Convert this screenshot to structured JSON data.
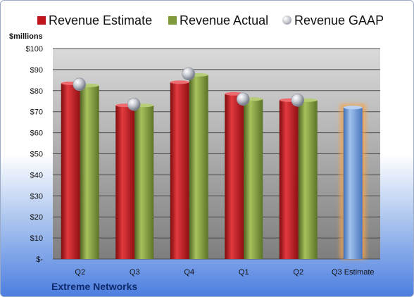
{
  "chart_data": {
    "type": "bar",
    "categories": [
      "Q2",
      "Q3",
      "Q4",
      "Q1",
      "Q2",
      "Q3 Estimate"
    ],
    "series": [
      {
        "name": "Revenue Estimate",
        "values": [
          83.5,
          73,
          84,
          78.5,
          75.5,
          72
        ]
      },
      {
        "name": "Revenue Actual",
        "values": [
          82.5,
          73,
          87.5,
          76,
          75.5,
          null
        ]
      },
      {
        "name": "Revenue GAAP",
        "values": [
          83,
          73.5,
          88,
          76,
          75.5,
          null
        ]
      }
    ],
    "ylabel": "$millions",
    "yticks": [
      "$-",
      "$10",
      "$20",
      "$30",
      "$40",
      "$50",
      "$60",
      "$70",
      "$80",
      "$90",
      "$100"
    ],
    "ylim": [
      0,
      100
    ],
    "legend_position": "top",
    "grid": true,
    "company": "Extreme Networks",
    "colors": {
      "estimate": "#c0161b",
      "actual": "#7f9a3c",
      "gaap": "#b9bcc4",
      "forecast": "#6f98d4",
      "forecast_glow": "#f5a24a"
    }
  }
}
